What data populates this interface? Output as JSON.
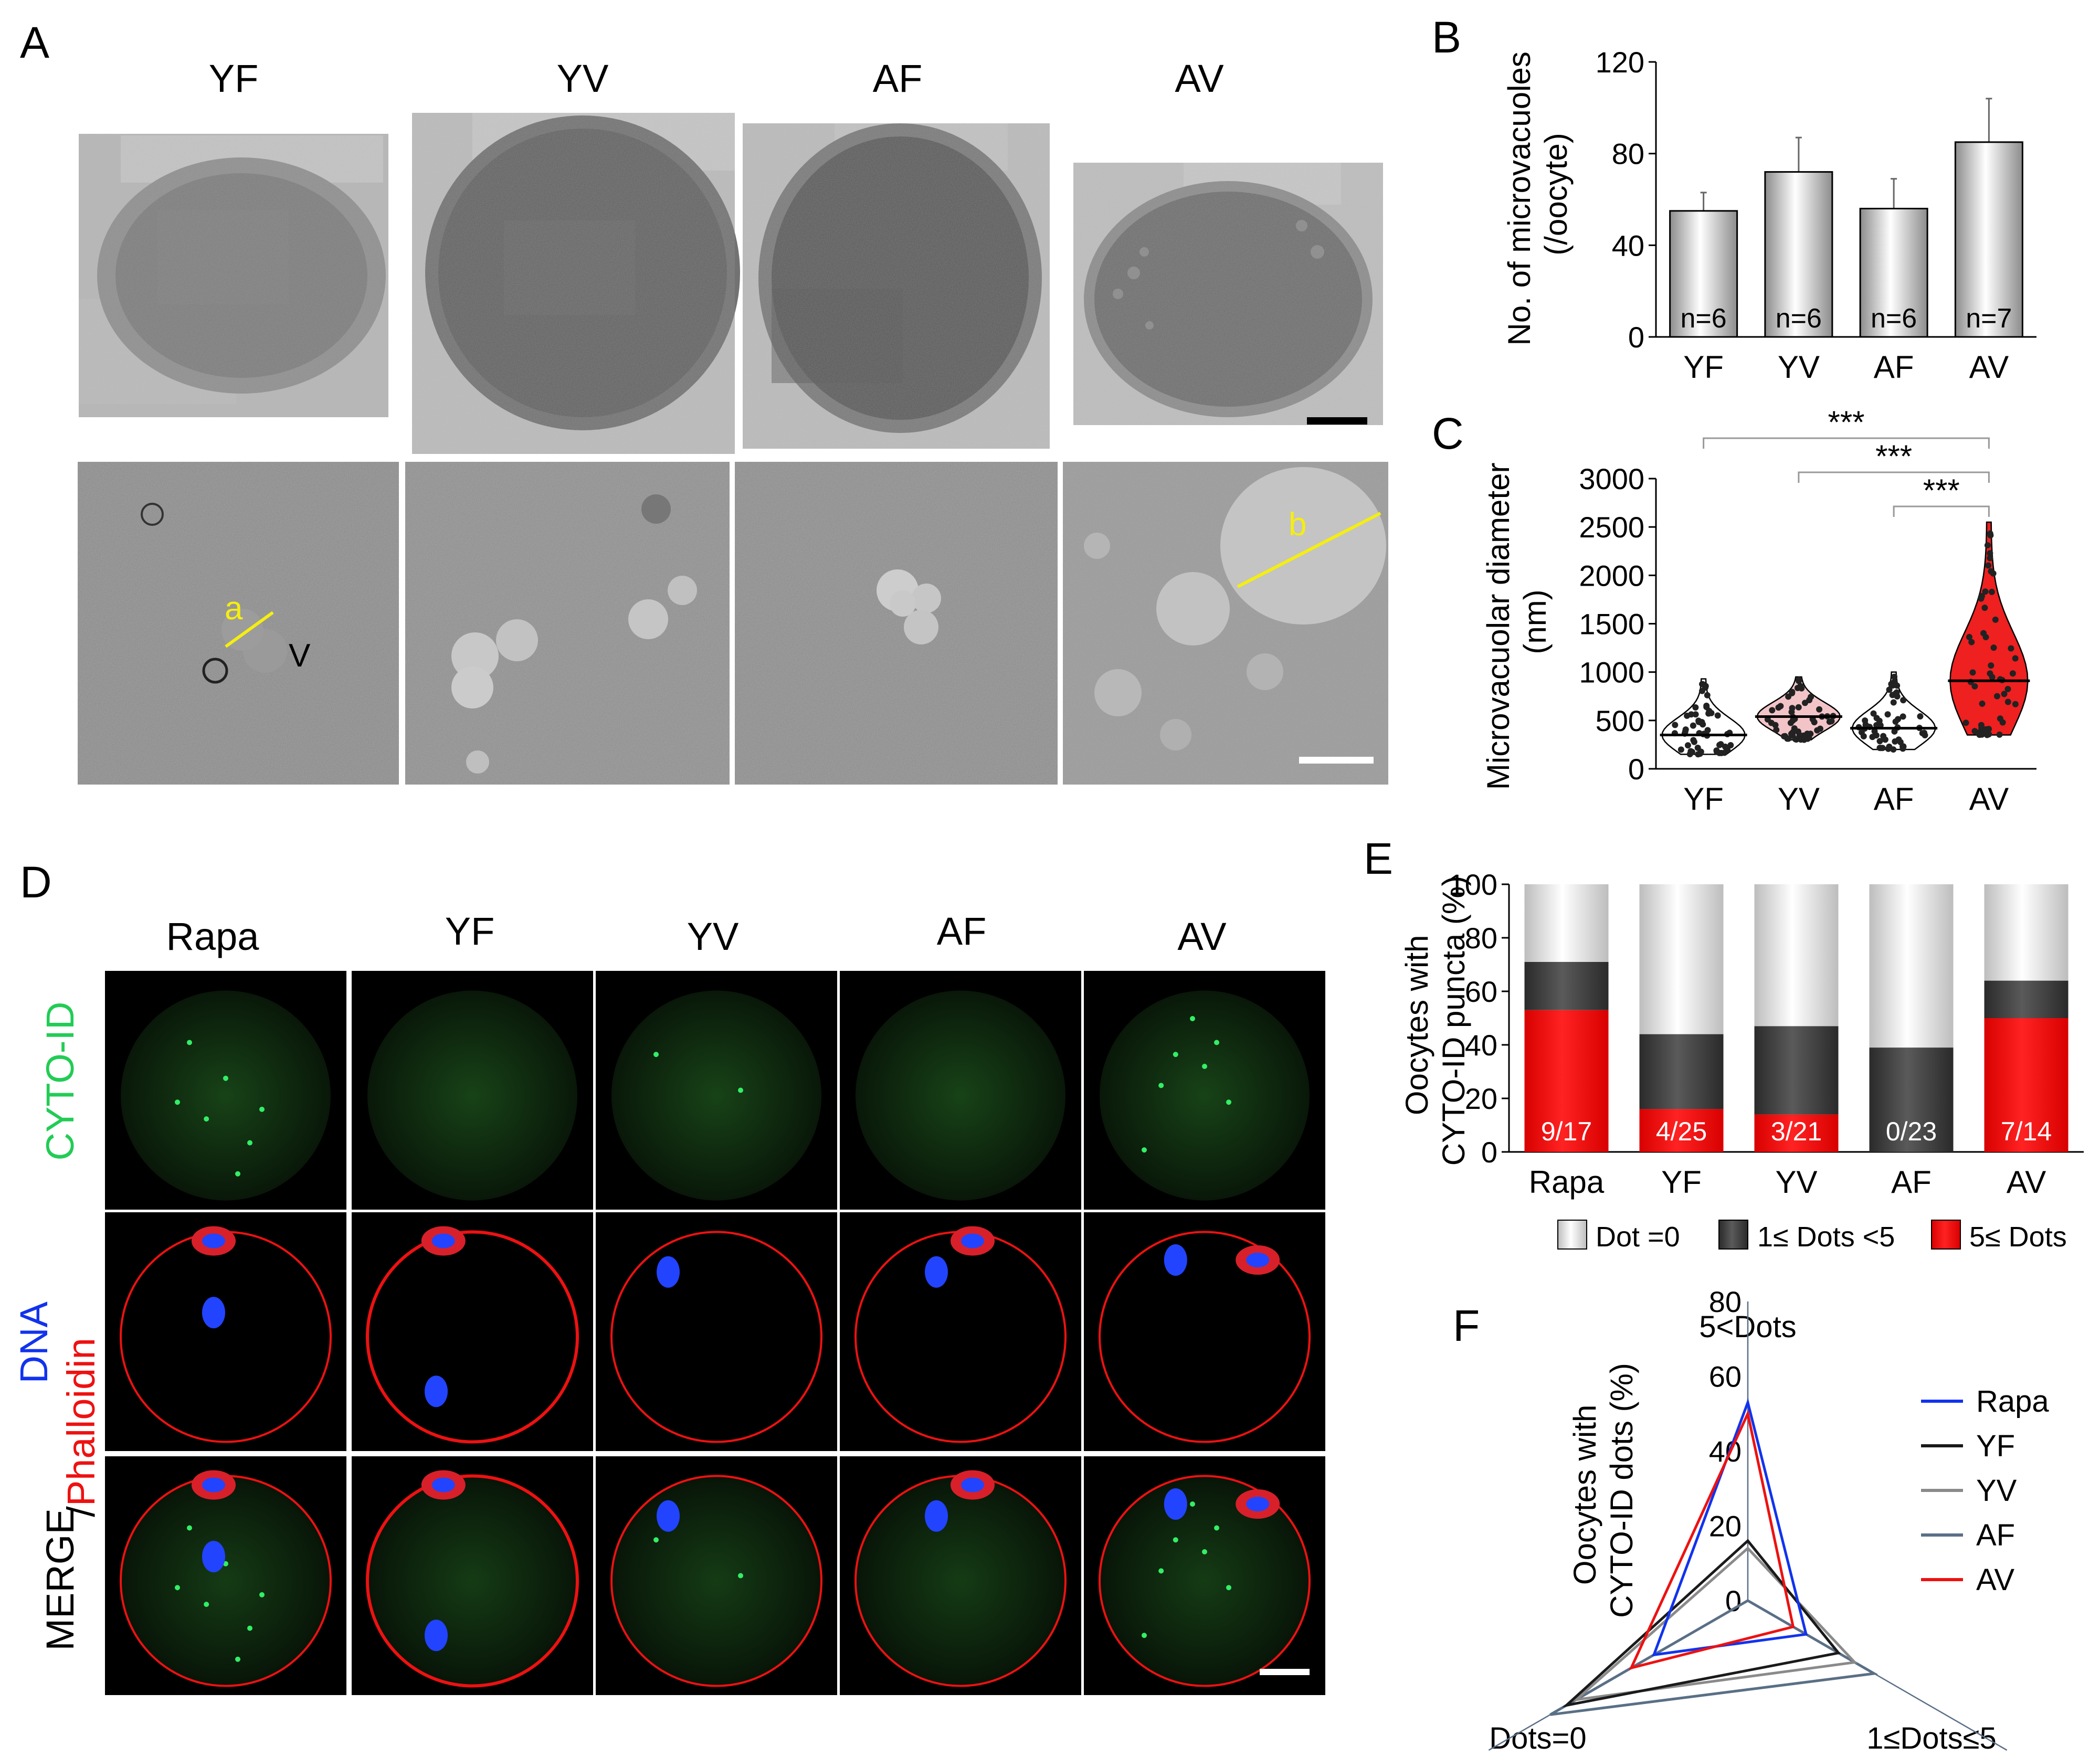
{
  "panels": {
    "A": {
      "letter": "A",
      "groups": [
        "YF",
        "YV",
        "AF",
        "AV"
      ],
      "labels": {
        "a": "a",
        "b": "b",
        "v": "V"
      }
    },
    "B": {
      "letter": "B",
      "ylabel_line1": "No. of microvacuoles",
      "ylabel_line2": "(/oocyte)",
      "ns": [
        "n=6",
        "n=6",
        "n=6",
        "n=7"
      ]
    },
    "C": {
      "letter": "C",
      "ylabel_line1": "Microvacuolar diameter",
      "ylabel_line2": "(nm)",
      "significance": [
        "***",
        "***",
        "***"
      ]
    },
    "D": {
      "letter": "D",
      "columns": [
        "Rapa",
        "YF",
        "YV",
        "AF",
        "AV"
      ],
      "row_cyto": "CYTO-ID",
      "row_dna": "DNA",
      "row_slash": "/",
      "row_phalloidin": "Phalloidin",
      "row_merge": "MERGE"
    },
    "E": {
      "letter": "E",
      "ylabel_line1": "Oocytes with",
      "ylabel_line2": "CYTO-ID puncta (%)",
      "fractions": [
        "9/17",
        "4/25",
        "3/21",
        "0/23",
        "7/14"
      ],
      "legend": [
        "Dot =0",
        "1≤ Dots <5",
        "5≤ Dots"
      ]
    },
    "F": {
      "letter": "F",
      "ylabel_line1": "Oocytes with",
      "ylabel_line2": "CYTO-ID dots (%)",
      "axes": [
        "5<Dots",
        "Dots=0",
        "1≤Dots≤5"
      ]
    }
  },
  "colors": {
    "red": "#ee1111",
    "dark": "#404040",
    "blue": "#1133ee",
    "yellow": "#f5ee10",
    "green": "#22cc55",
    "slate": "#5a6f86",
    "gray": "#8a8a8a"
  },
  "chart_data": [
    {
      "id": "B",
      "type": "bar",
      "categories": [
        "YF",
        "YV",
        "AF",
        "AV"
      ],
      "values": [
        55,
        72,
        56,
        85
      ],
      "errors": [
        8,
        15,
        13,
        19
      ],
      "ylim": [
        0,
        120
      ],
      "yticks": [
        0,
        40,
        80,
        120
      ]
    },
    {
      "id": "C",
      "type": "scatter",
      "categories": [
        "YF",
        "YV",
        "AF",
        "AV"
      ],
      "medians": [
        350,
        540,
        420,
        910
      ],
      "ranges": [
        [
          150,
          930
        ],
        [
          300,
          950
        ],
        [
          200,
          1000
        ],
        [
          350,
          2550
        ]
      ],
      "ylim": [
        0,
        3000
      ],
      "yticks": [
        0,
        500,
        1000,
        1500,
        2000,
        2500,
        3000
      ],
      "comparisons": [
        [
          "YF",
          "AV"
        ],
        [
          "YV",
          "AV"
        ],
        [
          "AF",
          "AV"
        ]
      ]
    },
    {
      "id": "E",
      "type": "bar",
      "categories": [
        "Rapa",
        "YF",
        "YV",
        "AF",
        "AV"
      ],
      "series": [
        {
          "name": "5≤ Dots",
          "values": [
            53,
            16,
            14,
            0,
            50
          ]
        },
        {
          "name": "1≤ Dots <5",
          "values": [
            18,
            28,
            33,
            39,
            14
          ]
        },
        {
          "name": "Dot =0",
          "values": [
            29,
            56,
            53,
            61,
            36
          ]
        }
      ],
      "ylim": [
        0,
        100
      ],
      "yticks": [
        0,
        20,
        40,
        60,
        80,
        100
      ]
    },
    {
      "id": "F",
      "type": "radar",
      "axes": [
        "5<Dots",
        "1≤Dots≤5",
        "Dots=0"
      ],
      "rlim": [
        0,
        80
      ],
      "rticks": [
        0,
        20,
        40,
        60,
        80
      ],
      "series": [
        {
          "name": "Rapa",
          "values": [
            53,
            18,
            29
          ]
        },
        {
          "name": "YF",
          "values": [
            16,
            28,
            56
          ]
        },
        {
          "name": "YV",
          "values": [
            14,
            33,
            53
          ]
        },
        {
          "name": "AF",
          "values": [
            0,
            39,
            61
          ]
        },
        {
          "name": "AV",
          "values": [
            50,
            14,
            36
          ]
        }
      ]
    }
  ]
}
